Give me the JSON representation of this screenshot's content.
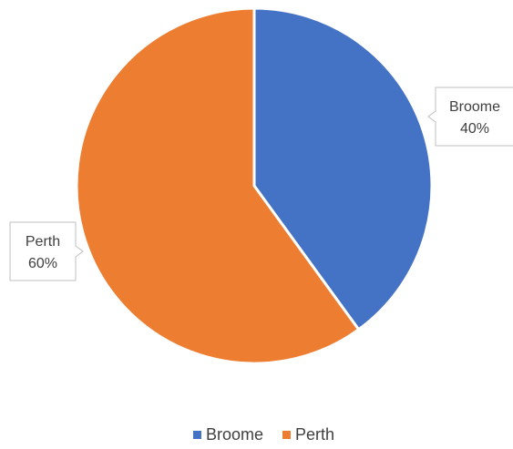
{
  "chart_data": {
    "type": "pie",
    "title": "",
    "categories": [
      "Broome",
      "Perth"
    ],
    "values": [
      40,
      60
    ],
    "value_labels": [
      "40%",
      "60%"
    ],
    "colors": [
      "#4472C4",
      "#ED7D31"
    ],
    "start_angle": "12 o'clock, clockwise",
    "data_labels": "callouts outside slices",
    "legend": {
      "position": "bottom",
      "entries": [
        "Broome",
        "Perth"
      ]
    }
  }
}
